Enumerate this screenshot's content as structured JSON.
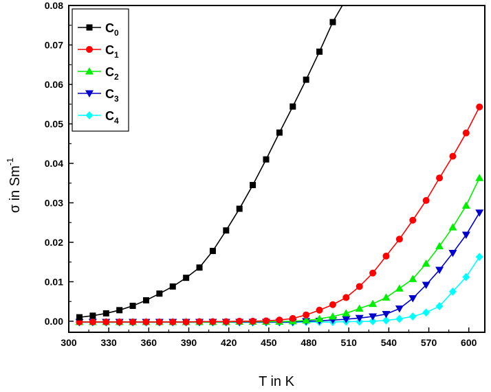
{
  "chart_data": {
    "type": "line",
    "xlabel": "T in K",
    "ylabel_main": "σ in Sm",
    "ylabel_sup": "-1",
    "xlim": [
      300,
      612
    ],
    "ylim": [
      -0.0028,
      0.08
    ],
    "x_ticks": [
      300,
      330,
      360,
      390,
      420,
      450,
      480,
      510,
      540,
      570,
      600
    ],
    "x_tick_labels": [
      "300",
      "330",
      "360",
      "390",
      "420",
      "450",
      "480",
      "510",
      "540",
      "570",
      "600"
    ],
    "y_ticks": [
      0.0,
      0.01,
      0.02,
      0.03,
      0.04,
      0.05,
      0.06,
      0.07,
      0.08
    ],
    "y_tick_labels": [
      "0.00",
      "0.01",
      "0.02",
      "0.03",
      "0.04",
      "0.05",
      "0.06",
      "0.07",
      "0.08"
    ],
    "legend_position": "top-left",
    "series": [
      {
        "name": "C",
        "sub": "0",
        "color": "#000000",
        "marker": "square",
        "x": [
          308,
          318,
          328,
          338,
          348,
          358,
          368,
          378,
          388,
          398,
          408,
          418,
          428,
          438,
          448,
          458,
          468,
          478,
          488,
          498
        ],
        "y": [
          0.001,
          0.0014,
          0.002,
          0.0028,
          0.0039,
          0.0053,
          0.007,
          0.0088,
          0.011,
          0.0136,
          0.0178,
          0.023,
          0.0285,
          0.0345,
          0.041,
          0.0478,
          0.0544,
          0.0612,
          0.0683,
          0.0758
        ],
        "trail_x": 506,
        "trail_y": 0.0805
      },
      {
        "name": "C",
        "sub": "1",
        "color": "#ff0000",
        "marker": "circle",
        "x": [
          308,
          318,
          328,
          338,
          348,
          358,
          368,
          378,
          388,
          398,
          408,
          418,
          428,
          438,
          448,
          458,
          468,
          478,
          488,
          498,
          508,
          518,
          528,
          538,
          548,
          558,
          568,
          578,
          588,
          598,
          608
        ],
        "y": [
          -0.0002,
          -0.0002,
          -0.0002,
          -0.0002,
          -0.0002,
          -0.0002,
          -0.0002,
          -0.0002,
          -0.0002,
          -0.0001,
          -0.0001,
          -0.0001,
          0.0,
          0.0,
          0.0001,
          0.0003,
          0.0007,
          0.0016,
          0.0028,
          0.0042,
          0.006,
          0.0088,
          0.0122,
          0.0165,
          0.0208,
          0.0256,
          0.0306,
          0.0363,
          0.0418,
          0.0477,
          0.0543
        ]
      },
      {
        "name": "C",
        "sub": "2",
        "color": "#00ee00",
        "marker": "triangle-up",
        "x": [
          308,
          318,
          328,
          338,
          348,
          358,
          368,
          378,
          388,
          398,
          408,
          418,
          428,
          438,
          448,
          458,
          468,
          478,
          488,
          498,
          508,
          518,
          528,
          538,
          548,
          558,
          568,
          578,
          588,
          598,
          608
        ],
        "y": [
          -0.0002,
          -0.0002,
          -0.0002,
          -0.0002,
          -0.0002,
          -0.0002,
          -0.0002,
          -0.0002,
          -0.0002,
          -0.0002,
          -0.0002,
          -0.0002,
          -0.0001,
          -0.0001,
          -0.0001,
          -0.0001,
          0.0,
          0.0002,
          0.0006,
          0.0012,
          0.002,
          0.0032,
          0.0044,
          0.006,
          0.0083,
          0.0107,
          0.0146,
          0.019,
          0.0238,
          0.0293,
          0.0363
        ]
      },
      {
        "name": "C",
        "sub": "3",
        "color": "#0000cc",
        "marker": "triangle-down",
        "x": [
          308,
          318,
          328,
          338,
          348,
          358,
          368,
          378,
          388,
          398,
          408,
          418,
          428,
          438,
          448,
          458,
          468,
          478,
          488,
          498,
          508,
          518,
          528,
          538,
          548,
          558,
          568,
          578,
          588,
          598,
          608
        ],
        "y": [
          -0.0002,
          -0.0002,
          -0.0002,
          -0.0002,
          -0.0002,
          -0.0002,
          -0.0002,
          -0.0002,
          -0.0002,
          -0.0002,
          -0.0002,
          -0.0002,
          -0.0002,
          -0.0002,
          -0.0002,
          -0.0002,
          -0.0002,
          0.0,
          0.0001,
          0.0003,
          0.0005,
          0.0008,
          0.0012,
          0.0018,
          0.0032,
          0.0058,
          0.0092,
          0.013,
          0.0173,
          0.0219,
          0.0275
        ]
      },
      {
        "name": "C",
        "sub": "4",
        "color": "#00ffff",
        "marker": "diamond",
        "x": [
          308,
          318,
          328,
          338,
          348,
          358,
          368,
          378,
          388,
          398,
          408,
          418,
          428,
          438,
          448,
          458,
          468,
          478,
          488,
          498,
          508,
          518,
          528,
          538,
          548,
          558,
          568,
          578,
          588,
          598,
          608
        ],
        "y": [
          -0.0003,
          -0.0003,
          -0.0003,
          -0.0003,
          -0.0003,
          -0.0003,
          -0.0003,
          -0.0003,
          -0.0003,
          -0.0003,
          -0.0003,
          -0.0003,
          -0.0003,
          -0.0003,
          -0.0003,
          -0.0003,
          -0.0003,
          -0.0002,
          -0.0002,
          -0.0002,
          -0.0001,
          -0.0001,
          0.0,
          0.0002,
          0.0006,
          0.0012,
          0.0022,
          0.0038,
          0.0075,
          0.0112,
          0.0163
        ]
      }
    ]
  }
}
